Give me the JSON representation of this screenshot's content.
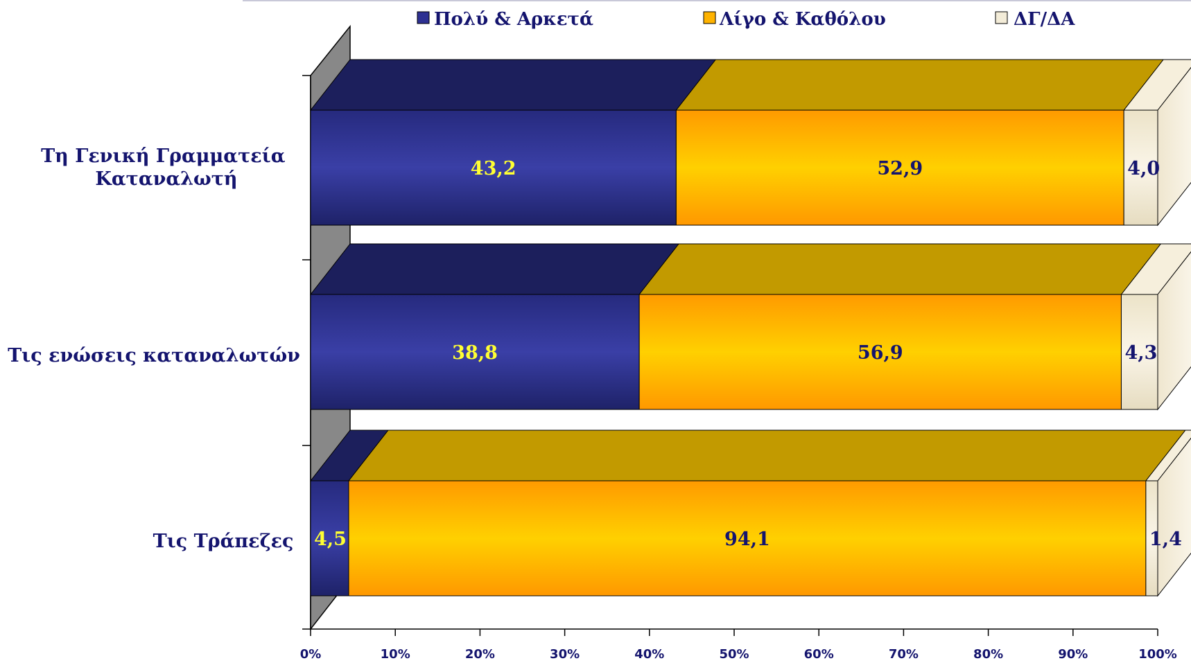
{
  "chart_data": {
    "type": "bar",
    "orientation": "horizontal",
    "stacked": "100%",
    "three_d": true,
    "categories": [
      [
        "Τη Γενική Γραμματεία",
        "Καταναλωτή"
      ],
      [
        "Τις ενώσεις καταναλωτών"
      ],
      [
        "Τις Τράπεζες"
      ]
    ],
    "series": [
      {
        "name": "Πολύ & Αρκετά",
        "values": [
          43.2,
          38.8,
          4.5
        ],
        "labels": [
          "43,2",
          "38,8",
          "4,5"
        ],
        "color": "#2e3192",
        "label_color": "#ffff33"
      },
      {
        "name": "Λίγο & Καθόλου",
        "values": [
          52.9,
          56.9,
          94.1
        ],
        "labels": [
          "52,9",
          "56,9",
          "94,1"
        ],
        "color": "#ffb300",
        "label_color": "#14146e"
      },
      {
        "name": "ΔΓ/ΔΑ",
        "values": [
          4.0,
          4.3,
          1.4
        ],
        "labels": [
          "4,0",
          "4,3",
          "1,4"
        ],
        "color": "#f3ecd8",
        "label_color": "#14146e"
      }
    ],
    "x_ticks": [
      "0%",
      "10%",
      "20%",
      "30%",
      "40%",
      "50%",
      "60%",
      "70%",
      "80%",
      "90%",
      "100%"
    ],
    "xlim": [
      0,
      100
    ],
    "legend_position": "top",
    "grid": false
  }
}
